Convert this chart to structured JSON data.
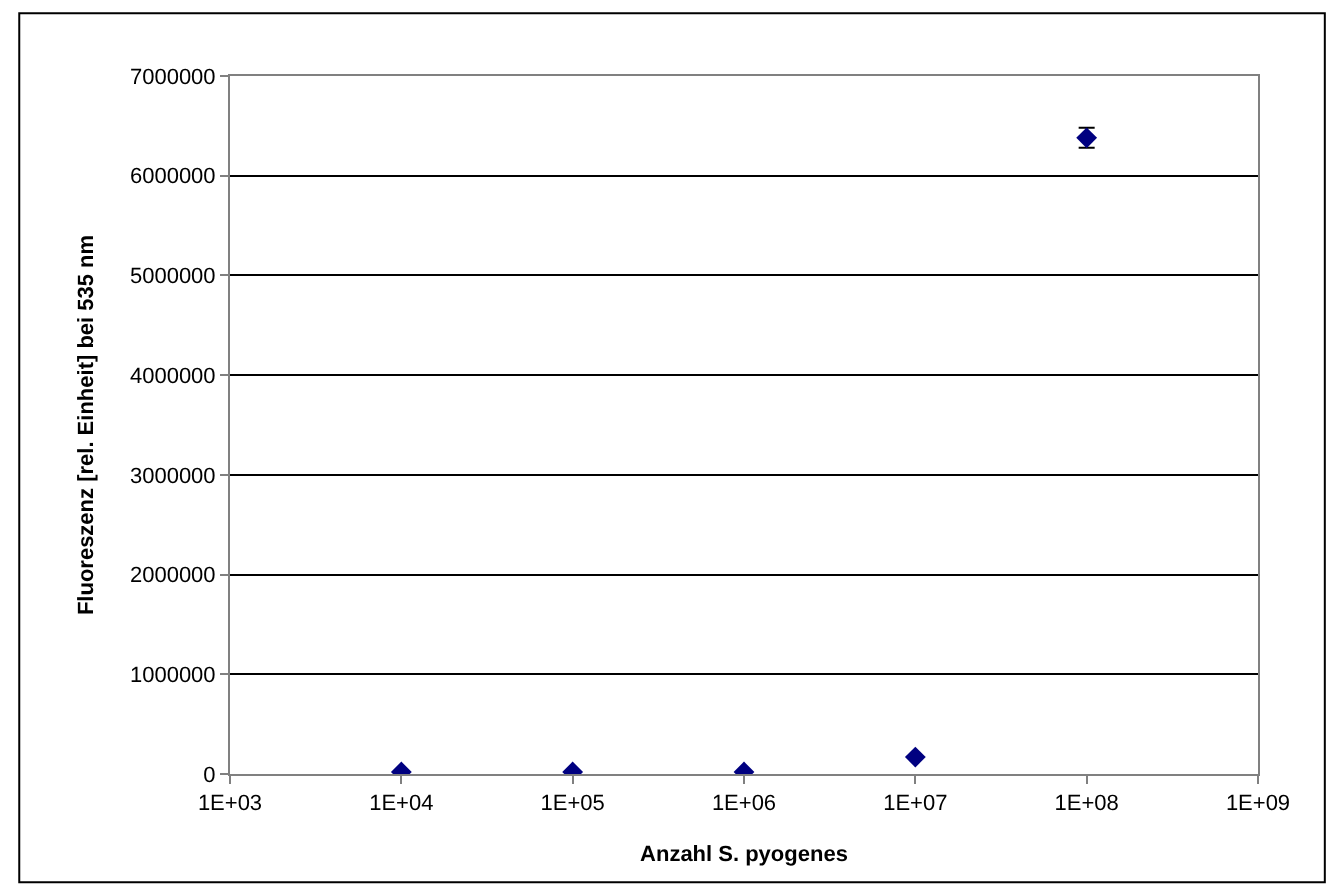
{
  "chart_data": {
    "type": "scatter",
    "xlabel": "Anzahl S. pyogenes",
    "ylabel": "Fluoreszenz [rel. Einheit] bei 535 nm",
    "log": "x",
    "x": [
      10000,
      100000,
      1000000,
      10000000,
      100000000
    ],
    "series": [
      {
        "color": "#000080",
        "values": [
          20000,
          20000,
          20000,
          170000,
          6380000
        ],
        "errors": [
          null,
          null,
          null,
          null,
          100000
        ]
      }
    ],
    "xlim": [
      1000,
      1000000000
    ],
    "xticks": [
      {
        "value": 1000,
        "label": "1E+03"
      },
      {
        "value": 10000,
        "label": "1E+04"
      },
      {
        "value": 100000,
        "label": "1E+05"
      },
      {
        "value": 1000000,
        "label": "1E+06"
      },
      {
        "value": 10000000,
        "label": "1E+07"
      },
      {
        "value": 100000000,
        "label": "1E+08"
      },
      {
        "value": 1000000000,
        "label": "1E+09"
      }
    ],
    "ylim": [
      0,
      7000000
    ],
    "yticks": [
      0,
      1000000,
      2000000,
      3000000,
      4000000,
      5000000,
      6000000,
      7000000
    ],
    "grid": "y",
    "marker": "diamond"
  }
}
